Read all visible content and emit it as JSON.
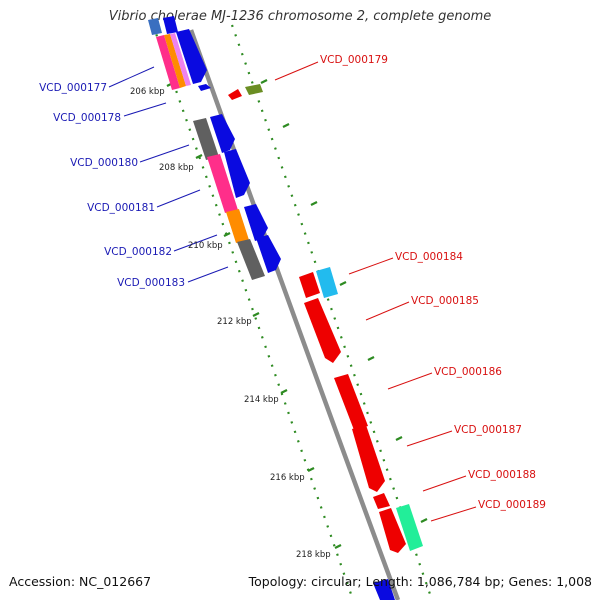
{
  "title": "Vibrio cholerae MJ-1236 chromosome 2, complete genome",
  "footer": {
    "accession": "Accession: NC_012667",
    "summary": "Topology: circular; Length: 1,086,784 bp; Genes: 1,008"
  },
  "colors": {
    "backbone": "#8c8c8c",
    "tick": "#2e8b22",
    "forward_label": "#1a1ab4",
    "reverse_label": "#d81010",
    "cds_blue": "#0a0ae0",
    "cds_red": "#ee0000"
  },
  "ticks": [
    {
      "label": "206 kbp"
    },
    {
      "label": "208 kbp"
    },
    {
      "label": "210 kbp"
    },
    {
      "label": "212 kbp"
    },
    {
      "label": "214 kbp"
    },
    {
      "label": "216 kbp"
    },
    {
      "label": "218 kbp"
    }
  ],
  "forward_genes": [
    {
      "label": "VCD_000177"
    },
    {
      "label": "VCD_000178"
    },
    {
      "label": "VCD_000180"
    },
    {
      "label": "VCD_000181"
    },
    {
      "label": "VCD_000182"
    },
    {
      "label": "VCD_000183"
    }
  ],
  "reverse_genes": [
    {
      "label": "VCD_000179"
    },
    {
      "label": "VCD_000184"
    },
    {
      "label": "VCD_000185"
    },
    {
      "label": "VCD_000186"
    },
    {
      "label": "VCD_000187"
    },
    {
      "label": "VCD_000188"
    },
    {
      "label": "VCD_000189"
    }
  ]
}
